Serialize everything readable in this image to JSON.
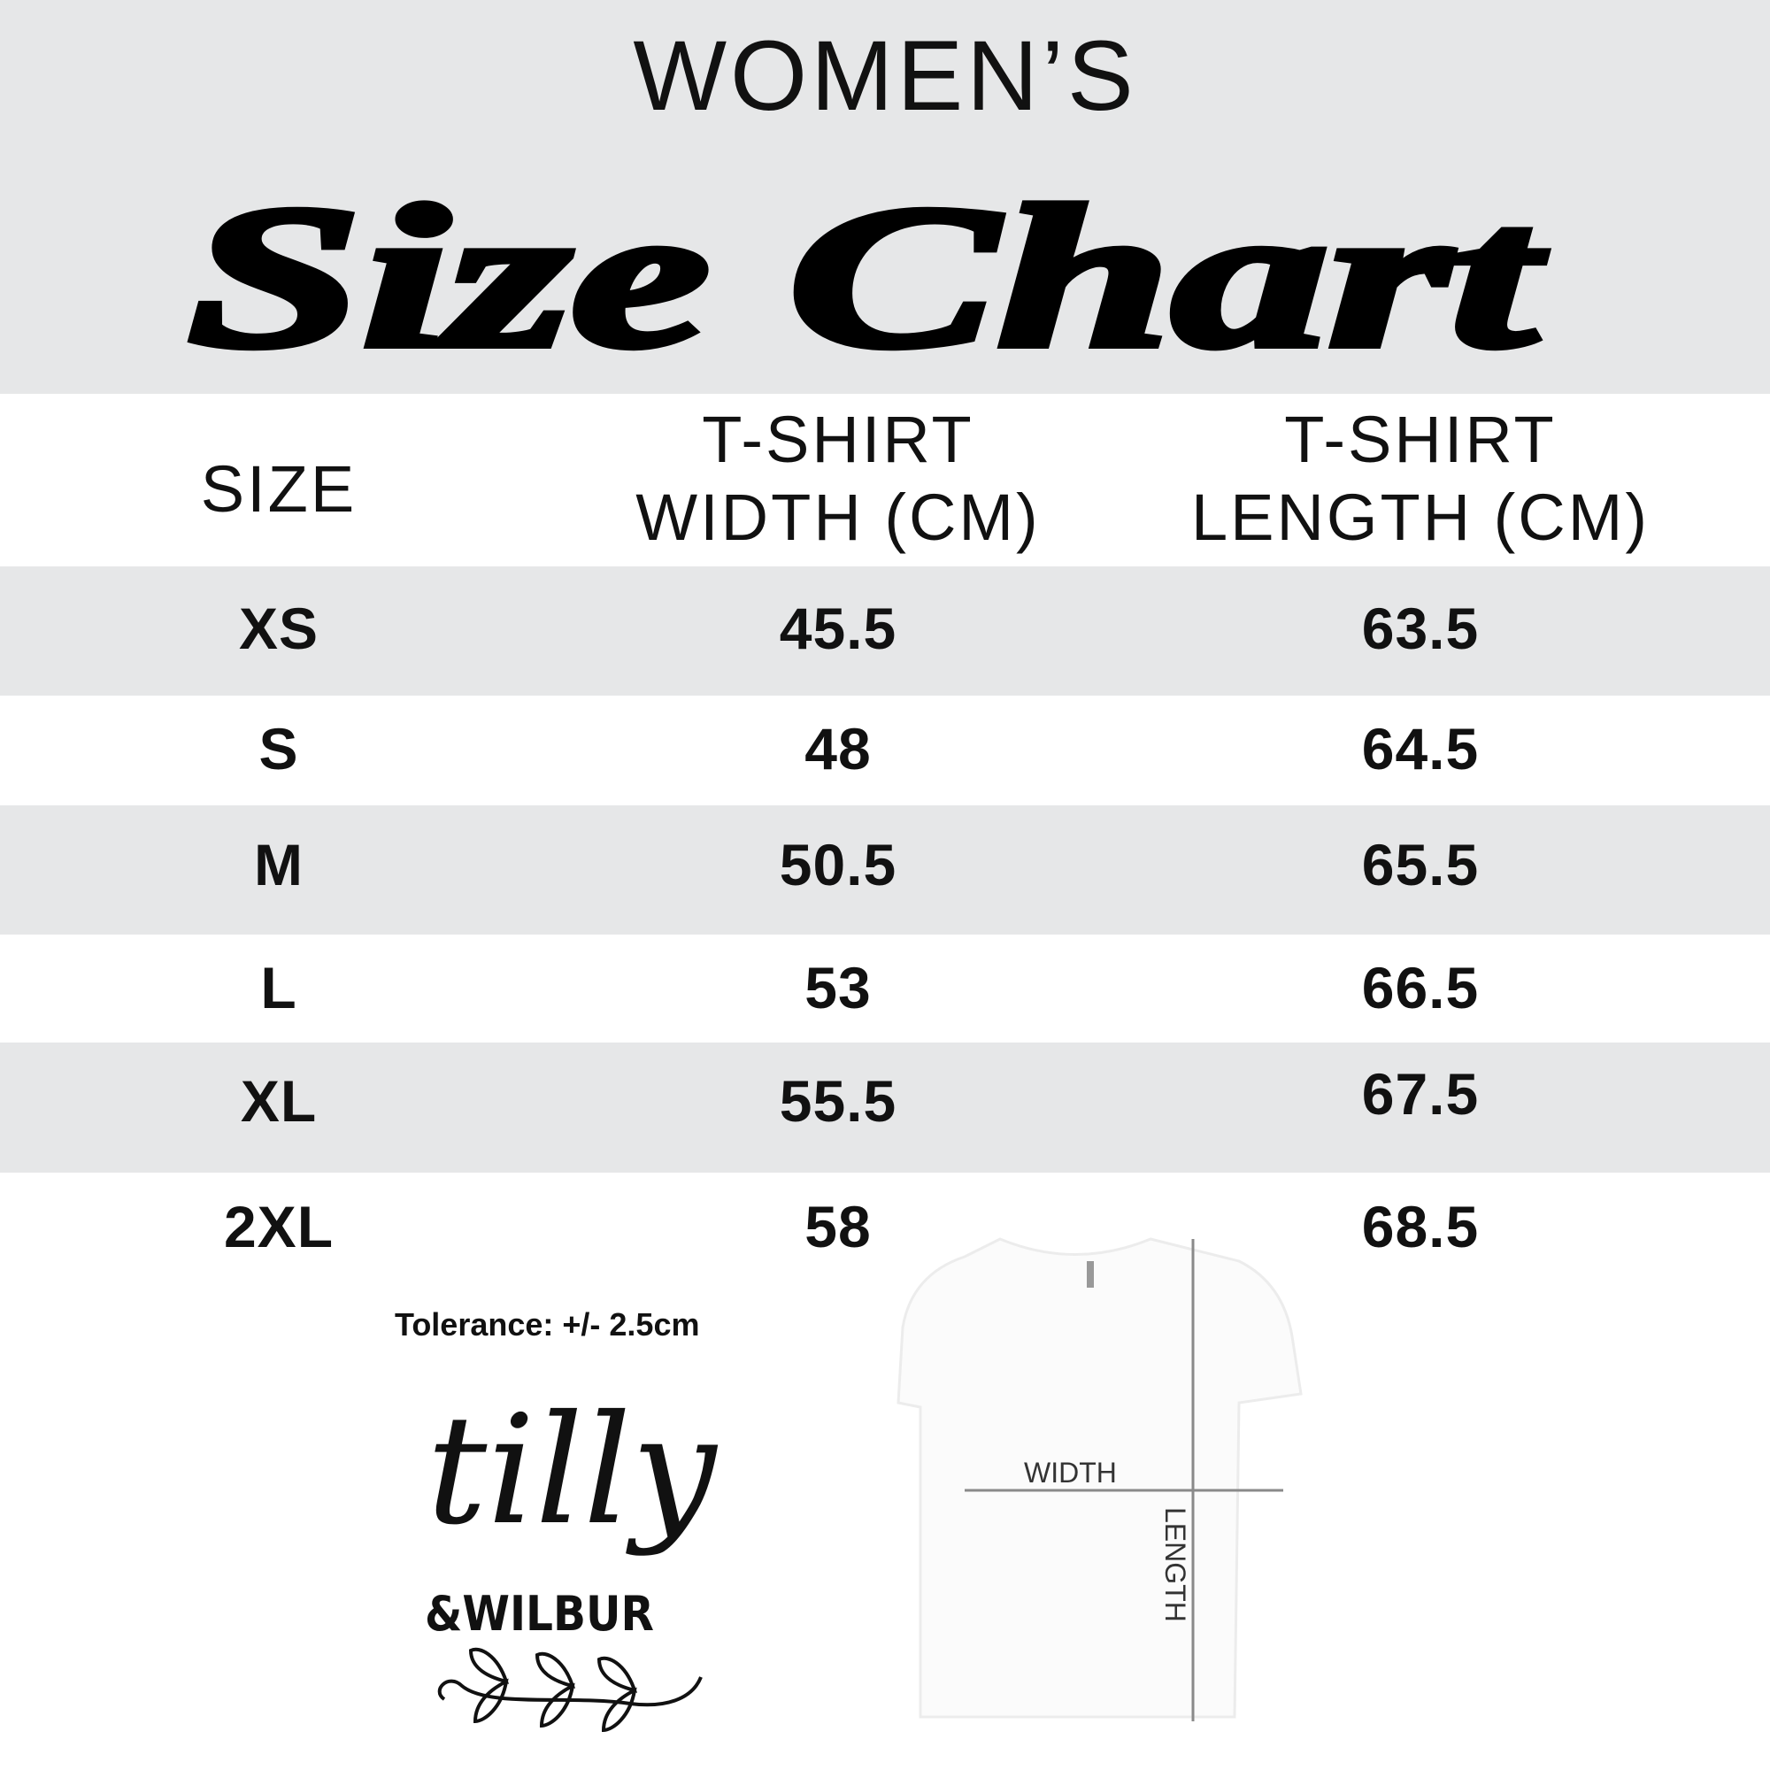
{
  "header": {
    "eyebrow": "WOMEN’S",
    "title": "Size Chart"
  },
  "table": {
    "columns": [
      "SIZE",
      "T-SHIRT\nWIDTH (CM)",
      "T-SHIRT\nLENGTH (CM)"
    ],
    "col_lines": [
      [
        "T-SHIRT",
        "WIDTH (CM)"
      ],
      [
        "T-SHIRT",
        "LENGTH (CM)"
      ]
    ],
    "rows": [
      {
        "size": "XS",
        "width": "45.5",
        "length": "63.5"
      },
      {
        "size": "S",
        "width": "48",
        "length": "64.5"
      },
      {
        "size": "M",
        "width": "50.5",
        "length": "65.5"
      },
      {
        "size": "L",
        "width": "53",
        "length": "66.5"
      },
      {
        "size": "XL",
        "width": "55.5",
        "length": "67.5"
      },
      {
        "size": "2XL",
        "width": "58",
        "length": "68.5"
      }
    ]
  },
  "tolerance": "Tolerance: +/- 2.5cm",
  "diagram": {
    "width_label": "WIDTH",
    "length_label": "LENGTH"
  },
  "logo": {
    "line1": "tilly",
    "line2": "&WILBUR"
  },
  "colors": {
    "band": "#e6e7e8",
    "text": "#111111",
    "measure_line": "#8a8a8a"
  }
}
